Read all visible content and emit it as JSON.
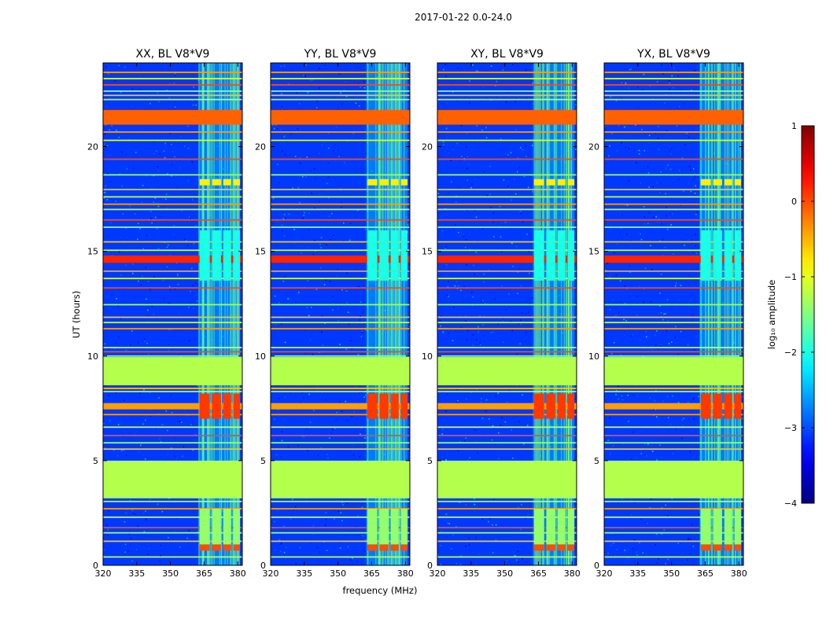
{
  "chart_data": {
    "type": "heatmap",
    "suptitle": "2017-01-22 0.0-24.0",
    "xlabel": "frequency (MHz)",
    "ylabel": "UT (hours)",
    "xlim": [
      320,
      382
    ],
    "ylim": [
      0,
      24
    ],
    "xticks": [
      320,
      335,
      350,
      365,
      380
    ],
    "yticks": [
      0,
      5,
      10,
      15,
      20
    ],
    "panels": [
      {
        "title": "XX, BL V8*V9",
        "polarization": "XX",
        "channel_edges": [
          363.5,
          372.5,
          376.0,
          380.0,
          365.5,
          376.5
        ]
      },
      {
        "title": "YY, BL V8*V9",
        "polarization": "YY",
        "channel_edges": [
          363.5,
          372.5,
          376.0,
          380.0,
          365.5,
          376.5
        ]
      },
      {
        "title": "XY, BL V8*V9",
        "polarization": "XY",
        "channel_edges": [
          363.5,
          372.5,
          376.0,
          380.0,
          365.5,
          376.5
        ]
      },
      {
        "title": "YX, BL V8*V9",
        "polarization": "YX",
        "channel_edges": [
          363.5,
          372.5,
          376.0,
          380.0,
          365.5,
          376.5
        ]
      }
    ],
    "background_log10_amplitude": -3.1,
    "active_band_mhz": [
      362.5,
      381.0
    ],
    "channel_blocks_mhz": [
      [
        363.0,
        367.5
      ],
      [
        368.5,
        372.5
      ],
      [
        373.5,
        377.0
      ],
      [
        378.0,
        381.0
      ]
    ],
    "bursts": [
      {
        "t0": 7.0,
        "t1": 8.2,
        "log10_amp": 0.1
      },
      {
        "t0": 0.7,
        "t1": 1.0,
        "log10_amp": 0.0
      },
      {
        "t0": 18.15,
        "t1": 18.45,
        "log10_amp": -0.8
      },
      {
        "t0": 13.6,
        "t1": 16.0,
        "log10_amp": -2.0
      },
      {
        "t0": 1.0,
        "t1": 2.7,
        "log10_amp": -1.4
      }
    ],
    "bands": [
      {
        "t0": 3.2,
        "t1": 5.0,
        "log10_amp": -1.25
      },
      {
        "t0": 8.6,
        "t1": 9.95,
        "log10_amp": -1.25
      },
      {
        "t0": 21.05,
        "t1": 21.75,
        "log10_amp": -0.1
      },
      {
        "t0": 14.45,
        "t1": 14.8,
        "log10_amp": 0.2
      },
      {
        "t0": 7.45,
        "t1": 7.75,
        "log10_amp": -0.4
      }
    ],
    "flag_lines_ut": [
      0.4,
      1.15,
      1.55,
      1.8,
      2.3,
      2.7,
      3.05,
      5.55,
      5.85,
      6.2,
      6.6,
      7.2,
      8.3,
      8.45,
      10.0,
      10.2,
      10.4,
      11.3,
      11.6,
      11.85,
      12.45,
      13.25,
      13.7,
      14.05,
      15.05,
      15.45,
      16.15,
      16.5,
      17.0,
      17.25,
      17.6,
      17.95,
      18.65,
      19.4,
      20.3,
      20.7,
      22.25,
      22.45,
      22.65,
      22.95,
      23.25,
      23.55
    ],
    "colorbar": {
      "label": "log₁₀ amplitude",
      "min": -4,
      "max": 1,
      "ticks": [
        "1",
        "0",
        "−1",
        "−2",
        "−3",
        "−4"
      ],
      "colormap": "jet"
    },
    "colors": {
      "jet_dark_blue": "#00007f",
      "jet_blue": "#0000ff",
      "jet_cyan": "#00ffff",
      "jet_green": "#7fff7f",
      "jet_yellow": "#ffff00",
      "jet_red": "#ff0000",
      "jet_dark_red": "#7f0000"
    }
  }
}
